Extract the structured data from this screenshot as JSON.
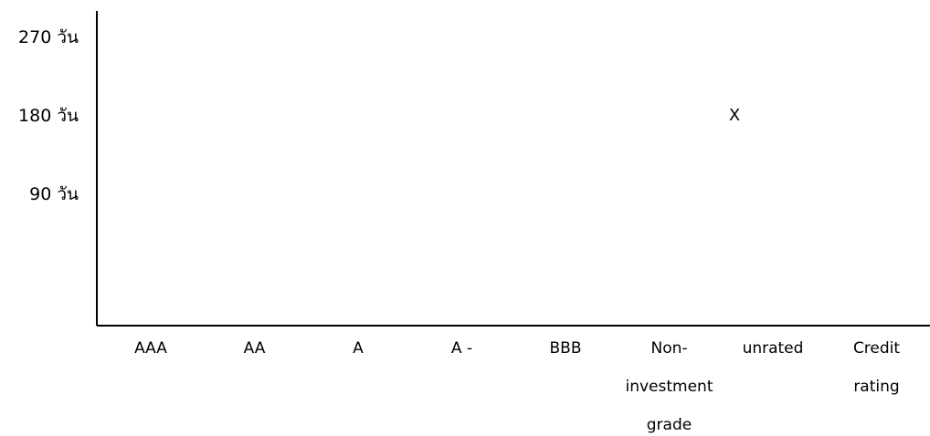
{
  "chart_data": {
    "type": "scatter",
    "title": "",
    "xlabel": "",
    "ylabel": "",
    "categories": [
      "AAA",
      "AA",
      "A",
      "A -",
      "BBB",
      "Non-investment grade",
      "unrated",
      "Credit rating"
    ],
    "category_lines": [
      [
        "AAA"
      ],
      [
        "AA"
      ],
      [
        "A"
      ],
      [
        "A -"
      ],
      [
        "BBB"
      ],
      [
        "Non-",
        "investment",
        "grade"
      ],
      [
        "unrated"
      ],
      [
        "Credit",
        "rating"
      ]
    ],
    "y_ticks": [
      {
        "value": 270,
        "label": "270 วัน"
      },
      {
        "value": 180,
        "label": "180 วัน"
      },
      {
        "value": 90,
        "label": "90 วัน"
      }
    ],
    "ylim": [
      0,
      270
    ],
    "grid": false,
    "points": [
      {
        "category": "unrated",
        "y": 180,
        "marker": "X"
      }
    ],
    "colors": {
      "axis": "#000000",
      "text": "#000000"
    }
  }
}
